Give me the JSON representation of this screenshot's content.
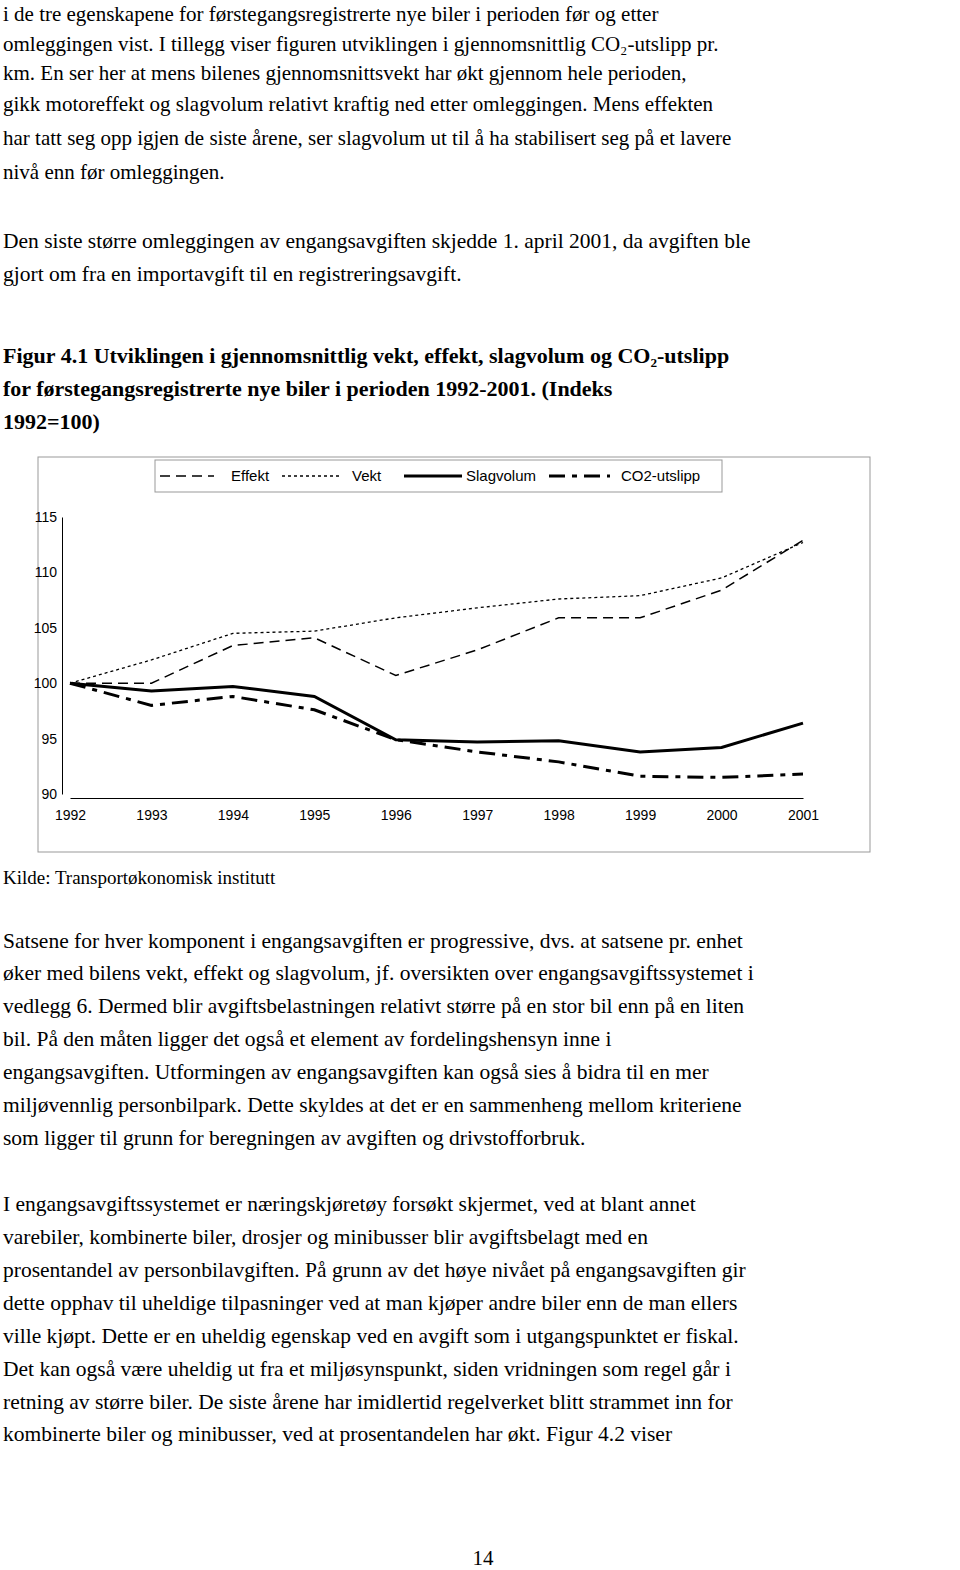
{
  "document": {
    "paragraphs": [
      {
        "lines": [
          "i de tre egenskapene for førstegangsregistrerte nye biler i perioden før og etter",
          "omleggingen vist. I tillegg viser figuren utviklingen i gjennomsnittlig CO₂-utslipp pr.",
          "km. En ser her at mens bilenes gjennomsnittsvekt har økt gjennom hele perioden,",
          "gikk motoreffekt og slagvolum relativt kraftig ned etter omleggingen. Mens effekten",
          "har tatt seg opp igjen de siste årene, ser slagvolum ut til å ha stabilisert seg på et lavere",
          "nivå enn før omleggingen."
        ]
      },
      {
        "lines": [
          "Den siste større omleggingen av engangsavgiften skjedde 1. april 2001, da avgiften ble",
          "gjort om fra en importavgift til en registreringsavgift."
        ]
      },
      {
        "lines": [
          "Satsene for hver komponent i engangsavgiften er progressive, dvs. at satsene pr. enhet",
          "øker med bilens vekt, effekt og slagvolum, jf. oversikten over engangsavgiftssystemet i",
          "vedlegg 6. Dermed blir avgiftsbelastningen relativt større på en stor bil enn på en liten",
          "bil. På den måten ligger det også et element av fordelingshensyn inne i",
          "engangsavgiften. Utformingen av engangsavgiften kan også sies å bidra til en mer",
          "miljøvennlig personbilpark. Dette skyldes at det er en sammenheng mellom kriteriene",
          "som ligger til grunn for beregningen av avgiften og drivstofforbruk."
        ]
      },
      {
        "lines": [
          "I engangsavgiftssystemet er næringskjøretøy forsøkt skjermet, ved at blant annet",
          "varebiler, kombinerte biler, drosjer og minibusser blir avgiftsbelagt med en",
          "prosentandel av personbilavgiften. På grunn av det høye nivået på engangsavgiften gir",
          "dette opphav til uheldige tilpasninger ved at man kjøper andre biler enn de man ellers",
          "ville kjøpt. Dette er en uheldig egenskap ved en avgift som i utgangspunktet er fiskal.",
          "Det kan også være uheldig ut fra et miljøsynspunkt, siden vridningen som regel går i",
          "retning av større biler. De siste årene har imidlertid regelverket blitt strammet inn for",
          "kombinerte biler og minibusser, ved at prosentandelen har økt. Figur 4.2 viser"
        ]
      }
    ],
    "figure_title": {
      "lines": [
        "Figur 4.1 Utviklingen i gjennomsnittlig vekt, effekt, slagvolum og CO₂-utslipp",
        "for førstegangsregistrerte nye biler i perioden 1992-2001. (Indeks",
        "1992=100)"
      ]
    },
    "source": "Kilde: Transportøkonomisk institutt",
    "page_number": "14"
  },
  "chart_data": {
    "type": "line",
    "categories": [
      "1992",
      "1993",
      "1994",
      "1995",
      "1996",
      "1997",
      "1998",
      "1999",
      "2000",
      "2001"
    ],
    "series": [
      {
        "name": "Effekt",
        "color": "#000000",
        "line_style": "dashed",
        "values": [
          100,
          100,
          103.4,
          104.1,
          100.7,
          103.0,
          105.9,
          105.9,
          108.4,
          112.9
        ]
      },
      {
        "name": "Vekt",
        "color": "#000000",
        "line_style": "dotted",
        "values": [
          100,
          102.1,
          104.5,
          104.7,
          105.9,
          106.8,
          107.6,
          107.9,
          109.5,
          112.7
        ]
      },
      {
        "name": "Slagvolum",
        "color": "#000000",
        "line_style": "solid",
        "values": [
          100,
          99.3,
          99.7,
          98.8,
          94.9,
          94.7,
          94.8,
          93.8,
          94.2,
          96.4
        ]
      },
      {
        "name": "CO2-utslipp",
        "color": "#000000",
        "line_style": "dashdot",
        "values": [
          100,
          98.0,
          98.8,
          97.6,
          94.9,
          93.8,
          92.9,
          91.6,
          91.5,
          91.8
        ]
      }
    ],
    "ylim": [
      90,
      115
    ],
    "yticks": [
      90,
      95,
      100,
      105,
      110,
      115
    ],
    "grid": false,
    "legend": "top"
  }
}
